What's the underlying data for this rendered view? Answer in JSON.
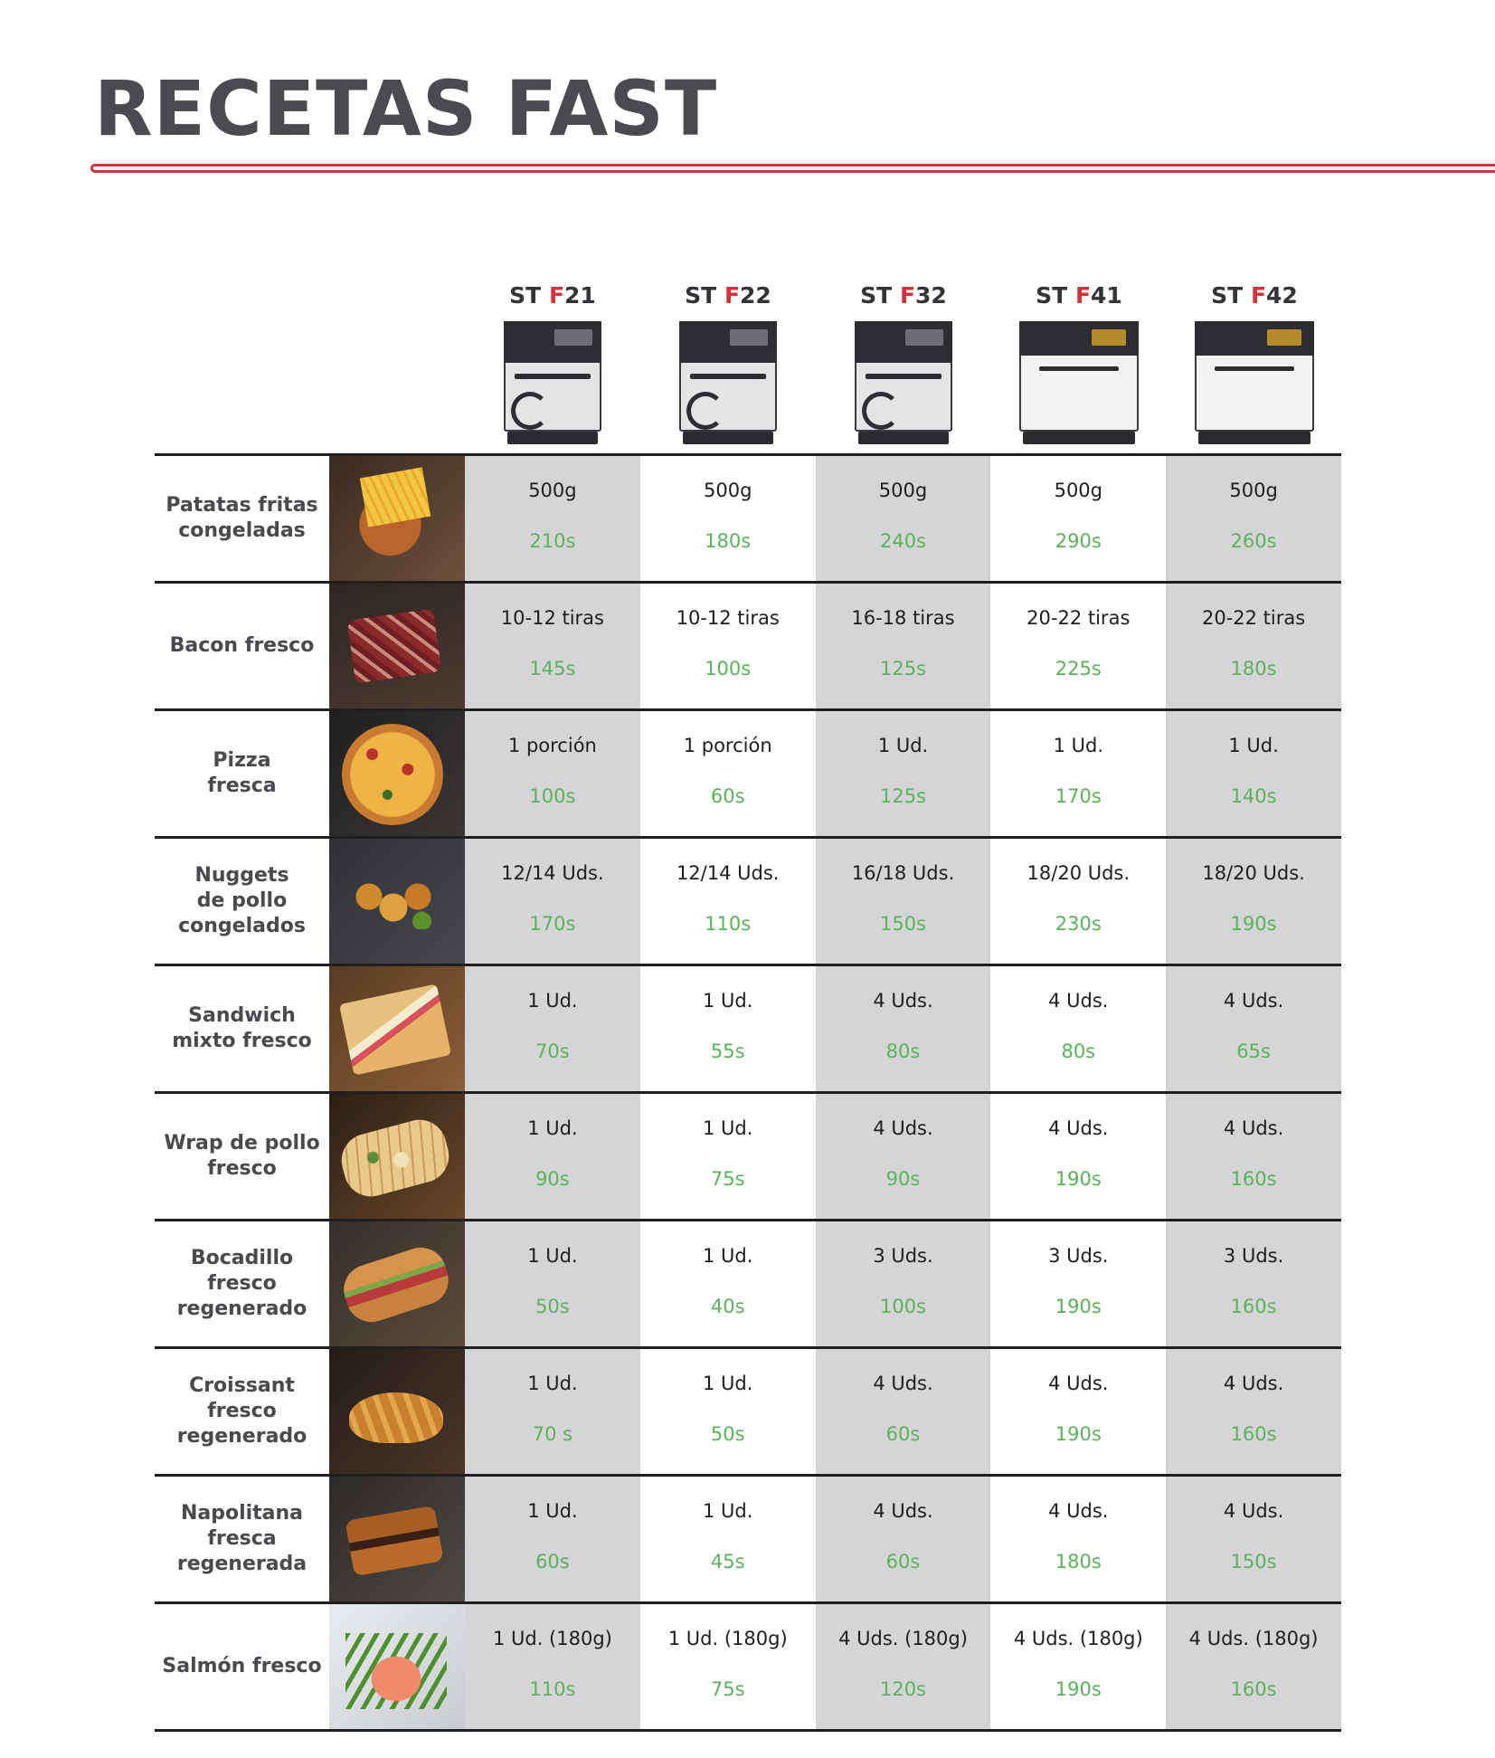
{
  "title": "RECETAS FAST",
  "accent_color": "#d2323a",
  "time_color": "#5bb25b",
  "models": [
    {
      "prefix": "ST ",
      "letter": "F",
      "number": "21",
      "icon": "oven-icon"
    },
    {
      "prefix": "ST ",
      "letter": "F",
      "number": "22",
      "icon": "oven-icon"
    },
    {
      "prefix": "ST ",
      "letter": "F",
      "number": "32",
      "icon": "oven-icon"
    },
    {
      "prefix": "ST ",
      "letter": "F",
      "number": "41",
      "icon": "oven-icon"
    },
    {
      "prefix": "ST ",
      "letter": "F",
      "number": "42",
      "icon": "oven-icon"
    }
  ],
  "recipes": [
    {
      "name": "Patatas fritas\ncongeladas",
      "image": "fries-photo",
      "cells": [
        {
          "qty": "500g",
          "time": "210s"
        },
        {
          "qty": "500g",
          "time": "180s"
        },
        {
          "qty": "500g",
          "time": "240s"
        },
        {
          "qty": "500g",
          "time": "290s"
        },
        {
          "qty": "500g",
          "time": "260s"
        }
      ]
    },
    {
      "name": "Bacon fresco",
      "image": "bacon-photo",
      "cells": [
        {
          "qty": "10-12 tiras",
          "time": "145s"
        },
        {
          "qty": "10-12 tiras",
          "time": "100s"
        },
        {
          "qty": "16-18 tiras",
          "time": "125s"
        },
        {
          "qty": "20-22 tiras",
          "time": "225s"
        },
        {
          "qty": "20-22 tiras",
          "time": "180s"
        }
      ]
    },
    {
      "name": "Pizza\nfresca",
      "image": "pizza-photo",
      "cells": [
        {
          "qty": "1 porción",
          "time": "100s"
        },
        {
          "qty": "1 porción",
          "time": "60s"
        },
        {
          "qty": "1 Ud.",
          "time": "125s"
        },
        {
          "qty": "1 Ud.",
          "time": "170s"
        },
        {
          "qty": "1 Ud.",
          "time": "140s"
        }
      ]
    },
    {
      "name": "Nuggets\nde pollo\ncongelados",
      "image": "nuggets-photo",
      "cells": [
        {
          "qty": "12/14 Uds.",
          "time": "170s"
        },
        {
          "qty": "12/14 Uds.",
          "time": "110s"
        },
        {
          "qty": "16/18 Uds.",
          "time": "150s"
        },
        {
          "qty": "18/20 Uds.",
          "time": "230s"
        },
        {
          "qty": "18/20 Uds.",
          "time": "190s"
        }
      ]
    },
    {
      "name": "Sandwich\nmixto fresco",
      "image": "sandwich-photo",
      "cells": [
        {
          "qty": "1 Ud.",
          "time": "70s"
        },
        {
          "qty": "1 Ud.",
          "time": "55s"
        },
        {
          "qty": "4 Uds.",
          "time": "80s"
        },
        {
          "qty": "4 Uds.",
          "time": "80s"
        },
        {
          "qty": "4 Uds.",
          "time": "65s"
        }
      ]
    },
    {
      "name": "Wrap de pollo\nfresco",
      "image": "wrap-photo",
      "cells": [
        {
          "qty": "1 Ud.",
          "time": "90s"
        },
        {
          "qty": "1 Ud.",
          "time": "75s"
        },
        {
          "qty": "4 Uds.",
          "time": "90s"
        },
        {
          "qty": "4 Uds.",
          "time": "190s"
        },
        {
          "qty": "4 Uds.",
          "time": "160s"
        }
      ]
    },
    {
      "name": "Bocadillo\nfresco\nregenerado",
      "image": "bocadillo-photo",
      "cells": [
        {
          "qty": "1 Ud.",
          "time": "50s"
        },
        {
          "qty": "1 Ud.",
          "time": "40s"
        },
        {
          "qty": "3 Uds.",
          "time": "100s"
        },
        {
          "qty": "3 Uds.",
          "time": "190s"
        },
        {
          "qty": "3 Uds.",
          "time": "160s"
        }
      ]
    },
    {
      "name": "Croissant\nfresco\nregenerado",
      "image": "croissant-photo",
      "cells": [
        {
          "qty": "1 Ud.",
          "time": "70 s"
        },
        {
          "qty": "1 Ud.",
          "time": "50s"
        },
        {
          "qty": "4 Uds.",
          "time": "60s"
        },
        {
          "qty": "4 Uds.",
          "time": "190s"
        },
        {
          "qty": "4 Uds.",
          "time": "160s"
        }
      ]
    },
    {
      "name": "Napolitana\nfresca\nregenerada",
      "image": "napolitana-photo",
      "cells": [
        {
          "qty": "1 Ud.",
          "time": "60s"
        },
        {
          "qty": "1 Ud.",
          "time": "45s"
        },
        {
          "qty": "4 Uds.",
          "time": "60s"
        },
        {
          "qty": "4 Uds.",
          "time": "180s"
        },
        {
          "qty": "4 Uds.",
          "time": "150s"
        }
      ]
    },
    {
      "name": "Salmón fresco",
      "image": "salmon-photo",
      "cells": [
        {
          "qty": "1 Ud. (180g)",
          "time": "110s"
        },
        {
          "qty": "1 Ud. (180g)",
          "time": "75s"
        },
        {
          "qty": "4 Uds. (180g)",
          "time": "120s"
        },
        {
          "qty": "4 Uds. (180g)",
          "time": "190s"
        },
        {
          "qty": "4 Uds. (180g)",
          "time": "160s"
        }
      ]
    }
  ]
}
